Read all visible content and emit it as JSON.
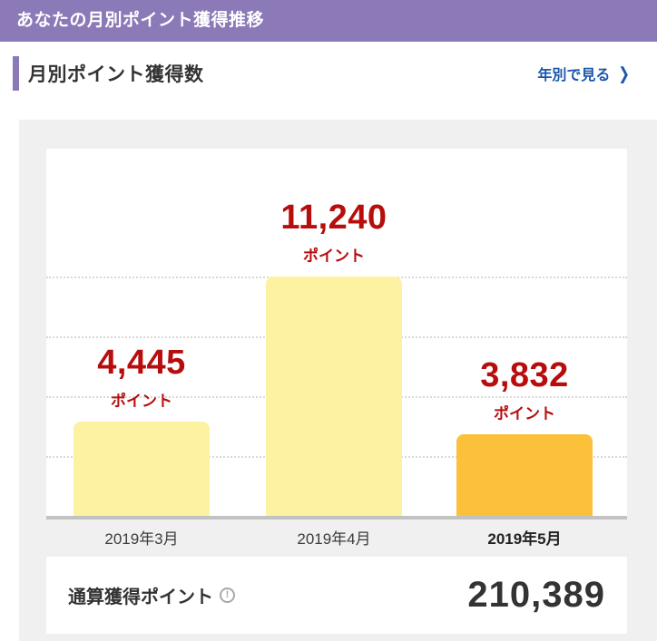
{
  "header": {
    "title": "あなたの月別ポイント獲得推移"
  },
  "section": {
    "title": "月別ポイント獲得数",
    "link": {
      "label": "年別で見る",
      "chevron": "❯"
    }
  },
  "chart_data": {
    "type": "bar",
    "title": "月別ポイント獲得数",
    "categories": [
      "2019年3月",
      "2019年4月",
      "2019年5月"
    ],
    "values": [
      4445,
      11240,
      3832
    ],
    "value_labels": [
      "4,445",
      "11,240",
      "3,832"
    ],
    "unit_label": "ポイント",
    "highlighted_index": 2,
    "bar_colors": [
      "#FCF2A2",
      "#FCF2A2",
      "#FBC13B"
    ],
    "value_label_color": "#B70D0D",
    "xlabel": "",
    "ylabel": "",
    "ylim": [
      0,
      11240
    ],
    "gridline_count": 4,
    "grid": true,
    "legend": false
  },
  "summary": {
    "label": "通算獲得ポイント",
    "info_icon_glyph": "!",
    "value": "210,389"
  },
  "colors": {
    "header_purple": "#8C79B8",
    "accent_purple": "#8C79B8",
    "link_blue": "#1C56A9",
    "value_red": "#B70D0D",
    "bar_yellow": "#FCF2A2",
    "bar_amber": "#FBC13B",
    "panel_gray": "#F0F0F0",
    "baseline_gray": "#C2C2C2",
    "text_dark": "#333333"
  }
}
